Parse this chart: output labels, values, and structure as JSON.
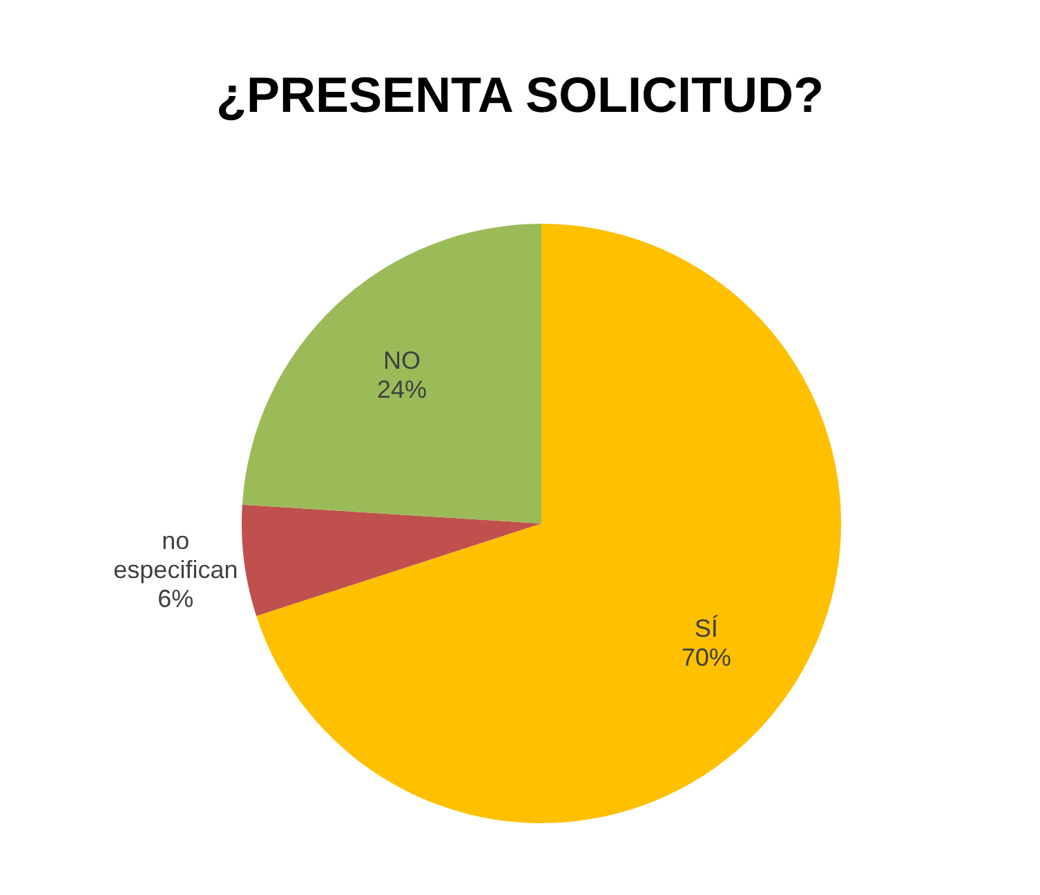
{
  "chart_data": {
    "type": "pie",
    "title": "¿PRESENTA SOLICITUD?",
    "categories": [
      "SÍ",
      "no especifican",
      "NO"
    ],
    "values": [
      70,
      6,
      24
    ],
    "colors": [
      "#ffc000",
      "#c0504d",
      "#9bbb59"
    ],
    "value_labels": [
      "70%",
      "6%",
      "24%"
    ]
  }
}
